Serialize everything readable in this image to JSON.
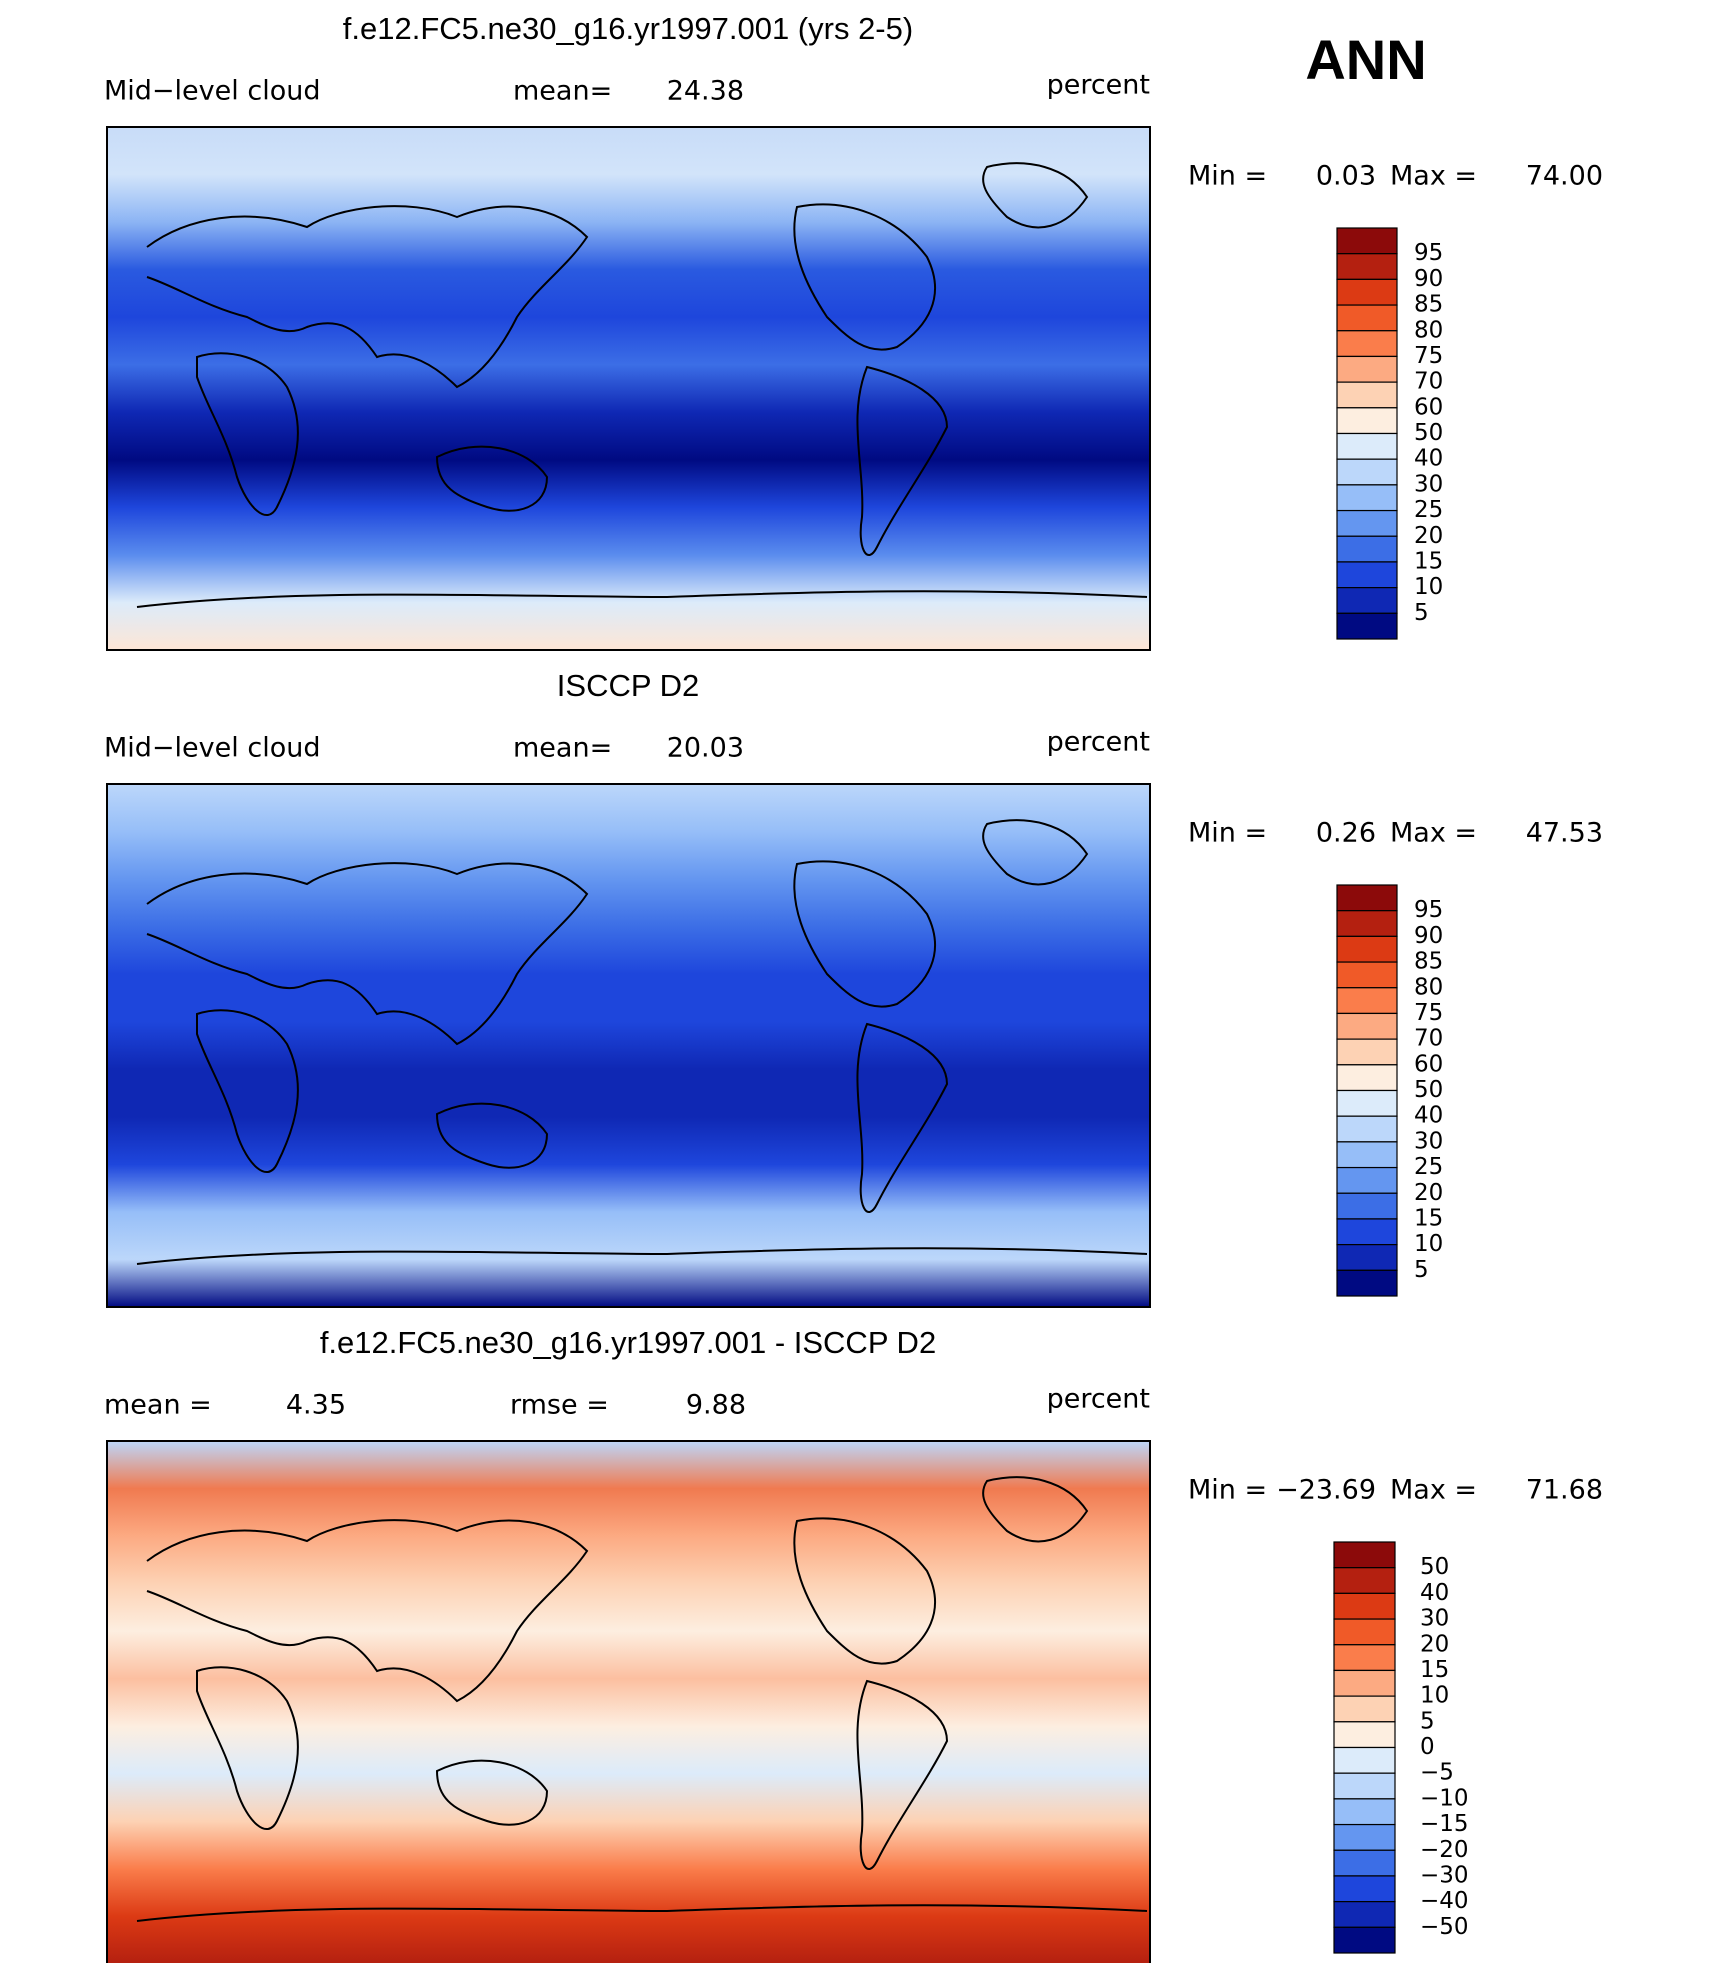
{
  "header": {
    "season": "ANN"
  },
  "panels": [
    {
      "title": "f.e12.FC5.ne30_g16.yr1997.001 (yrs 2-5)",
      "left_label": "Mid−level cloud",
      "stat_label": "mean=",
      "stat_value": "24.38",
      "unit": "percent",
      "min_label": "Min =",
      "min_value": "0.03",
      "max_label": "Max =",
      "max_value": "74.00",
      "colorbar": {
        "labels": [
          "95",
          "90",
          "85",
          "80",
          "75",
          "70",
          "60",
          "50",
          "40",
          "30",
          "25",
          "20",
          "15",
          "10",
          "5"
        ],
        "colors": [
          "#8c0a0a",
          "#b42010",
          "#dc3a14",
          "#f05a28",
          "#fa7d4b",
          "#fcaa82",
          "#fdd2b4",
          "#fdeee0",
          "#dcebfa",
          "#bcd7fa",
          "#96bef8",
          "#6496f0",
          "#3c6ee6",
          "#1e46dc",
          "#0f28b4",
          "#000a82"
        ]
      },
      "field": [
        "#c8dcf8",
        "#d2e4fa",
        "#8cb4f4",
        "#2a5ae0",
        "#1e46dc",
        "#3c6ee6",
        "#0f28b4",
        "#000a82",
        "#1e46dc",
        "#5a8cee",
        "#dcebfa",
        "#fde6d6"
      ]
    },
    {
      "title": "ISCCP D2",
      "left_label": "Mid−level cloud",
      "stat_label": "mean=",
      "stat_value": "20.03",
      "unit": "percent",
      "min_label": "Min =",
      "min_value": "0.26",
      "max_label": "Max =",
      "max_value": "47.53",
      "colorbar": {
        "labels": [
          "95",
          "90",
          "85",
          "80",
          "75",
          "70",
          "60",
          "50",
          "40",
          "30",
          "25",
          "20",
          "15",
          "10",
          "5"
        ],
        "colors": [
          "#8c0a0a",
          "#b42010",
          "#dc3a14",
          "#f05a28",
          "#fa7d4b",
          "#fcaa82",
          "#fdd2b4",
          "#fdeee0",
          "#dcebfa",
          "#bcd7fa",
          "#96bef8",
          "#6496f0",
          "#3c6ee6",
          "#1e46dc",
          "#0f28b4",
          "#000a82"
        ]
      },
      "field": [
        "#bcd7fa",
        "#96bef8",
        "#6496f0",
        "#3c6ee6",
        "#1e46dc",
        "#1e46dc",
        "#0f28b4",
        "#0f28b4",
        "#1e46dc",
        "#96bef8",
        "#bcd7fa",
        "#000a82"
      ]
    },
    {
      "title": "f.e12.FC5.ne30_g16.yr1997.001 - ISCCP D2",
      "left_label": "mean =",
      "left_value": "4.35",
      "stat_label": "rmse =",
      "stat_value": "9.88",
      "unit": "percent",
      "min_label": "Min =",
      "min_value": "−23.69",
      "max_label": "Max =",
      "max_value": "71.68",
      "colorbar": {
        "labels": [
          "50",
          "40",
          "30",
          "20",
          "15",
          "10",
          "5",
          "0",
          "−5",
          "−10",
          "−15",
          "−20",
          "−30",
          "−40",
          "−50"
        ],
        "colors": [
          "#8c0a0a",
          "#b42010",
          "#dc3a14",
          "#f05a28",
          "#fa7d4b",
          "#fcaa82",
          "#fdd2b4",
          "#fdeee0",
          "#dcebfa",
          "#bcd7fa",
          "#96bef8",
          "#6496f0",
          "#3c6ee6",
          "#1e46dc",
          "#0f28b4",
          "#000a82"
        ]
      },
      "field": [
        "#bcd7fa",
        "#f07a50",
        "#fcaa82",
        "#fdd2b4",
        "#fdeee0",
        "#fcbfa0",
        "#fdeee0",
        "#dcebfa",
        "#fdd2b4",
        "#fa7d4b",
        "#dc3a14",
        "#b42010"
      ]
    }
  ]
}
